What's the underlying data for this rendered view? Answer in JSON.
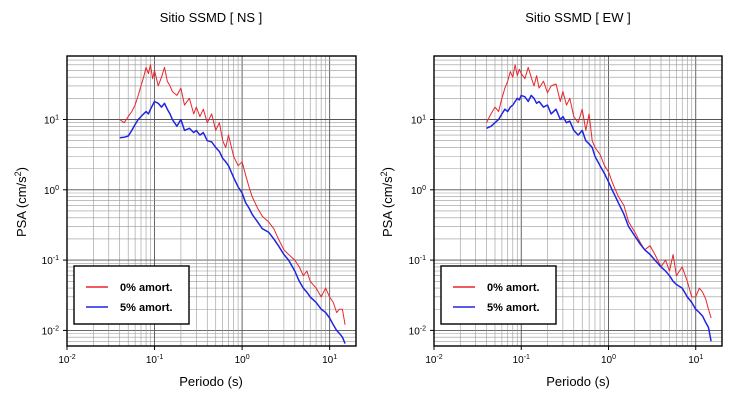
{
  "chart_data": [
    {
      "type": "line",
      "title": "Sitio SSMD [ NS ]",
      "xlabel": "Periodo (s)",
      "ylabel_base": "PSA (cm/s",
      "ylabel_sup": "2",
      "ylabel_end": ")",
      "x_scale": "log",
      "y_scale": "log",
      "xlim": [
        0.01,
        20
      ],
      "ylim": [
        0.006,
        80
      ],
      "x_ticks": [
        {
          "value": 0.01,
          "base": "10",
          "exp": "-2"
        },
        {
          "value": 0.1,
          "base": "10",
          "exp": "-1"
        },
        {
          "value": 1,
          "base": "10",
          "exp": "0"
        },
        {
          "value": 10,
          "base": "10",
          "exp": "1"
        }
      ],
      "y_ticks": [
        {
          "value": 0.01,
          "base": "10",
          "exp": "-2"
        },
        {
          "value": 0.1,
          "base": "10",
          "exp": "-1"
        },
        {
          "value": 1,
          "base": "10",
          "exp": "0"
        },
        {
          "value": 10,
          "base": "10",
          "exp": "1"
        }
      ],
      "grid": true,
      "legend_position": "bottom-left",
      "series": [
        {
          "name": "0% amort.",
          "color": "#e8262c",
          "x": [
            0.04,
            0.045,
            0.05,
            0.055,
            0.06,
            0.065,
            0.07,
            0.075,
            0.08,
            0.085,
            0.09,
            0.095,
            0.1,
            0.11,
            0.12,
            0.13,
            0.14,
            0.15,
            0.16,
            0.18,
            0.2,
            0.22,
            0.25,
            0.28,
            0.3,
            0.33,
            0.36,
            0.4,
            0.45,
            0.5,
            0.55,
            0.6,
            0.65,
            0.7,
            0.8,
            0.9,
            1.0,
            1.1,
            1.2,
            1.3,
            1.5,
            1.7,
            2.0,
            2.3,
            2.6,
            3.0,
            3.4,
            4.0,
            4.5,
            5.0,
            5.5,
            6.0,
            7.0,
            8.0,
            9.0,
            10.0,
            11.0,
            12.0,
            13.0,
            14.0,
            15.0
          ],
          "y": [
            10,
            9,
            11,
            13,
            16,
            22,
            30,
            40,
            55,
            45,
            60,
            38,
            50,
            30,
            40,
            55,
            35,
            30,
            25,
            22,
            28,
            16,
            20,
            12,
            15,
            11,
            14,
            9,
            12,
            7,
            9,
            5,
            4,
            6,
            3,
            2.2,
            2.5,
            1.6,
            1.1,
            0.8,
            0.55,
            0.42,
            0.35,
            0.28,
            0.2,
            0.14,
            0.12,
            0.1,
            0.08,
            0.06,
            0.07,
            0.05,
            0.04,
            0.03,
            0.04,
            0.03,
            0.025,
            0.018,
            0.02,
            0.02,
            0.012
          ]
        },
        {
          "name": "5% amort.",
          "color": "#1f25e0",
          "x": [
            0.04,
            0.045,
            0.05,
            0.055,
            0.06,
            0.065,
            0.07,
            0.075,
            0.08,
            0.085,
            0.09,
            0.095,
            0.1,
            0.11,
            0.12,
            0.13,
            0.14,
            0.15,
            0.16,
            0.18,
            0.2,
            0.22,
            0.25,
            0.28,
            0.3,
            0.33,
            0.36,
            0.4,
            0.45,
            0.5,
            0.55,
            0.6,
            0.65,
            0.7,
            0.8,
            0.9,
            1.0,
            1.1,
            1.2,
            1.3,
            1.5,
            1.7,
            2.0,
            2.3,
            2.6,
            3.0,
            3.4,
            4.0,
            4.5,
            5.0,
            5.5,
            6.0,
            7.0,
            8.0,
            9.0,
            10.0,
            11.0,
            12.0,
            13.0,
            14.0,
            15.0
          ],
          "y": [
            5.5,
            5.6,
            5.8,
            7,
            8.5,
            10,
            11,
            12,
            13,
            12,
            14,
            16,
            18,
            17,
            15,
            17,
            14,
            12,
            10,
            8,
            10,
            7,
            7.5,
            6.5,
            7,
            6,
            6.5,
            5,
            4.8,
            4,
            3.5,
            2.8,
            2.5,
            2.2,
            1.5,
            1.1,
            0.9,
            0.65,
            0.55,
            0.45,
            0.35,
            0.28,
            0.25,
            0.2,
            0.16,
            0.12,
            0.1,
            0.07,
            0.05,
            0.04,
            0.035,
            0.03,
            0.025,
            0.02,
            0.018,
            0.015,
            0.012,
            0.01,
            0.009,
            0.008,
            0.0065
          ]
        }
      ]
    },
    {
      "type": "line",
      "title": "Sitio SSMD [ EW ]",
      "xlabel": "Periodo (s)",
      "ylabel_base": "PSA (cm/s",
      "ylabel_sup": "2",
      "ylabel_end": ")",
      "x_scale": "log",
      "y_scale": "log",
      "xlim": [
        0.01,
        20
      ],
      "ylim": [
        0.006,
        80
      ],
      "x_ticks": [
        {
          "value": 0.01,
          "base": "10",
          "exp": "-2"
        },
        {
          "value": 0.1,
          "base": "10",
          "exp": "-1"
        },
        {
          "value": 1,
          "base": "10",
          "exp": "0"
        },
        {
          "value": 10,
          "base": "10",
          "exp": "1"
        }
      ],
      "y_ticks": [
        {
          "value": 0.01,
          "base": "10",
          "exp": "-2"
        },
        {
          "value": 0.1,
          "base": "10",
          "exp": "-1"
        },
        {
          "value": 1,
          "base": "10",
          "exp": "0"
        },
        {
          "value": 10,
          "base": "10",
          "exp": "1"
        }
      ],
      "grid": true,
      "legend_position": "bottom-left",
      "series": [
        {
          "name": "0% amort.",
          "color": "#e8262c",
          "x": [
            0.04,
            0.045,
            0.05,
            0.055,
            0.06,
            0.065,
            0.07,
            0.075,
            0.08,
            0.085,
            0.09,
            0.095,
            0.1,
            0.11,
            0.12,
            0.13,
            0.14,
            0.15,
            0.16,
            0.18,
            0.2,
            0.22,
            0.25,
            0.28,
            0.3,
            0.33,
            0.36,
            0.4,
            0.45,
            0.5,
            0.55,
            0.6,
            0.65,
            0.7,
            0.8,
            0.9,
            1.0,
            1.1,
            1.2,
            1.3,
            1.5,
            1.7,
            2.0,
            2.3,
            2.6,
            3.0,
            3.4,
            4.0,
            4.5,
            5.0,
            5.5,
            6.0,
            7.0,
            8.0,
            9.0,
            10.0,
            11.0,
            12.0,
            13.0,
            14.0,
            15.0
          ],
          "y": [
            9,
            12,
            15,
            13,
            20,
            28,
            35,
            48,
            40,
            60,
            42,
            52,
            45,
            38,
            55,
            40,
            30,
            42,
            28,
            35,
            24,
            30,
            32,
            18,
            25,
            16,
            20,
            11,
            9,
            14,
            7,
            12,
            5,
            4,
            3.2,
            2.2,
            1.8,
            1.3,
            1.0,
            0.8,
            0.6,
            0.35,
            0.25,
            0.18,
            0.14,
            0.16,
            0.12,
            0.08,
            0.1,
            0.07,
            0.12,
            0.06,
            0.08,
            0.05,
            0.03,
            0.03,
            0.04,
            0.035,
            0.028,
            0.02,
            0.015
          ]
        },
        {
          "name": "5% amort.",
          "color": "#1f25e0",
          "x": [
            0.04,
            0.045,
            0.05,
            0.055,
            0.06,
            0.065,
            0.07,
            0.075,
            0.08,
            0.085,
            0.09,
            0.095,
            0.1,
            0.11,
            0.12,
            0.13,
            0.14,
            0.15,
            0.16,
            0.18,
            0.2,
            0.22,
            0.25,
            0.28,
            0.3,
            0.33,
            0.36,
            0.4,
            0.45,
            0.5,
            0.55,
            0.6,
            0.65,
            0.7,
            0.8,
            0.9,
            1.0,
            1.1,
            1.2,
            1.3,
            1.5,
            1.7,
            2.0,
            2.3,
            2.6,
            3.0,
            3.4,
            4.0,
            4.5,
            5.0,
            5.5,
            6.0,
            7.0,
            8.0,
            9.0,
            10.0,
            11.0,
            12.0,
            13.0,
            14.0,
            15.0
          ],
          "y": [
            7.5,
            8,
            9,
            10,
            12,
            14,
            13,
            15,
            16,
            18,
            20,
            19,
            22,
            21,
            18,
            22,
            20,
            17,
            18,
            15,
            16,
            12,
            14,
            10,
            11,
            9,
            9.5,
            7,
            6,
            7,
            5,
            4.5,
            4,
            3,
            2.2,
            1.7,
            1.3,
            1.0,
            0.8,
            0.65,
            0.45,
            0.3,
            0.22,
            0.17,
            0.14,
            0.12,
            0.1,
            0.08,
            0.07,
            0.06,
            0.05,
            0.045,
            0.04,
            0.03,
            0.025,
            0.02,
            0.018,
            0.016,
            0.013,
            0.011,
            0.007
          ]
        }
      ]
    }
  ]
}
